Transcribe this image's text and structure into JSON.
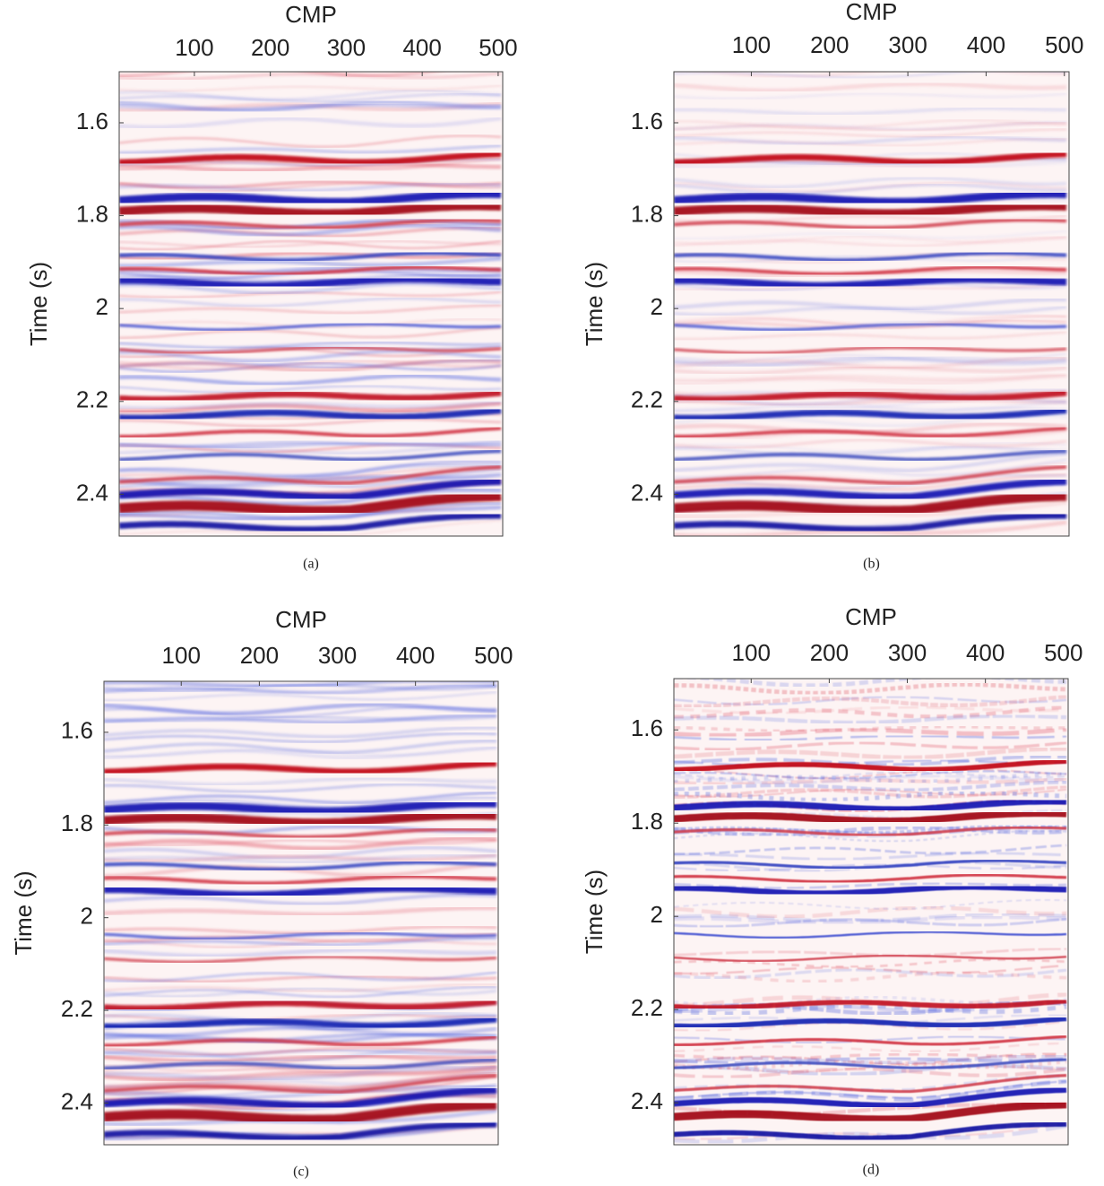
{
  "chart_data": [
    {
      "type": "image",
      "title": "CMP",
      "ylabel": "Time (s)",
      "caption": "(a)",
      "xlim": [
        1,
        506
      ],
      "xticks": [
        100,
        200,
        300,
        400,
        500
      ],
      "ylim": [
        1.49,
        2.49
      ],
      "yticks": [
        1.6,
        1.8,
        2,
        2.2,
        2.4
      ]
    },
    {
      "type": "image",
      "title": "CMP",
      "ylabel": "Time (s)",
      "caption": "(b)",
      "xlim": [
        1,
        506
      ],
      "xticks": [
        100,
        200,
        300,
        400,
        500
      ],
      "ylim": [
        1.49,
        2.49
      ],
      "yticks": [
        1.6,
        1.8,
        2,
        2.2,
        2.4
      ]
    },
    {
      "type": "image",
      "title": "CMP",
      "ylabel": "Time (s)",
      "caption": "(c)",
      "xlim": [
        1,
        506
      ],
      "xticks": [
        100,
        200,
        300,
        400,
        500
      ],
      "ylim": [
        1.49,
        2.49
      ],
      "yticks": [
        1.6,
        1.8,
        2,
        2.2,
        2.4
      ]
    },
    {
      "type": "image",
      "title": "CMP",
      "ylabel": "Time (s)",
      "caption": "(d)",
      "xlim": [
        1,
        506
      ],
      "xticks": [
        100,
        200,
        300,
        400,
        500
      ],
      "ylim": [
        1.49,
        2.49
      ],
      "yticks": [
        1.6,
        1.8,
        2,
        2.2,
        2.4
      ]
    }
  ]
}
